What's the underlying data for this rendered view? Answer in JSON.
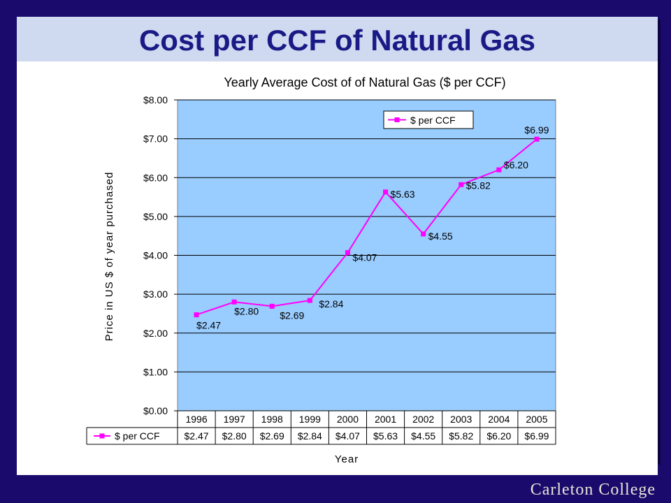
{
  "slide": {
    "title": "Cost per CCF of Natural Gas",
    "footer": "Carleton College"
  },
  "colors": {
    "background": "#1a0a6b",
    "title_band": "#cfd9f0",
    "title_text": "#1a1a86",
    "plot_area": "#99ccff",
    "series": "#ff00ff"
  },
  "chart_data": {
    "type": "line",
    "title": "Yearly Average Cost of of Natural Gas ($ per CCF)",
    "xlabel": "Year",
    "ylabel": "Price in US $ of year purchased",
    "ylim": [
      0,
      8
    ],
    "yticks": [
      "$0.00",
      "$1.00",
      "$2.00",
      "$3.00",
      "$4.00",
      "$5.00",
      "$6.00",
      "$7.00",
      "$8.00"
    ],
    "grid": true,
    "legend_position": "top-right",
    "categories": [
      "1996",
      "1997",
      "1998",
      "1999",
      "2000",
      "2001",
      "2002",
      "2003",
      "2004",
      "2005"
    ],
    "series": [
      {
        "name": "$ per CCF",
        "color": "#ff00ff",
        "values": [
          2.47,
          2.8,
          2.69,
          2.84,
          4.07,
          5.63,
          4.55,
          5.82,
          6.2,
          6.99
        ],
        "labels": [
          "$2.47",
          "$2.80",
          "$2.69",
          "$2.84",
          "$4.07",
          "$5.63",
          "$4.55",
          "$5.82",
          "$6.20",
          "$6.99"
        ]
      }
    ],
    "data_table": true
  }
}
